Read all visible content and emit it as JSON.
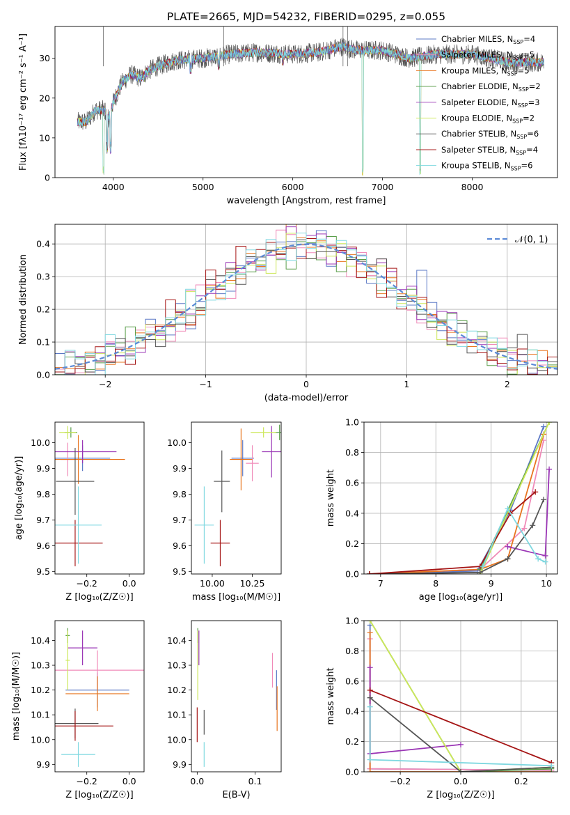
{
  "figure": {
    "title": "PLATE=2665, MJD=54232, FIBERID=0295, z=0.055"
  },
  "models": [
    {
      "name": "Chabrier MILES",
      "nssp": "4",
      "color": "#5b78c5"
    },
    {
      "name": "Salpeter MILES",
      "nssp": "5",
      "color": "#f08ab8"
    },
    {
      "name": "Kroupa MILES",
      "nssp": "5",
      "color": "#e8751f"
    },
    {
      "name": "Chabrier ELODIE",
      "nssp": "2",
      "color": "#5a9e4a"
    },
    {
      "name": "Salpeter ELODIE",
      "nssp": "3",
      "color": "#9a35b5"
    },
    {
      "name": "Kroupa ELODIE",
      "nssp": "2",
      "color": "#cde85a"
    },
    {
      "name": "Chabrier STELIB",
      "nssp": "6",
      "color": "#555555"
    },
    {
      "name": "Salpeter STELIB",
      "nssp": "4",
      "color": "#a51515"
    },
    {
      "name": "Kroupa STELIB",
      "nssp": "6",
      "color": "#7fd8e0"
    }
  ],
  "chart_data": [
    {
      "id": "spectrum",
      "type": "line",
      "xlabel": "wavelength [Angstrom, rest frame]",
      "ylabel": "Flux [fλ10⁻¹⁷ erg cm⁻² s⁻¹ A⁻¹]",
      "xlim": [
        3350,
        8950
      ],
      "ylim": [
        0,
        38
      ],
      "xticks": [
        "4000",
        "5000",
        "6000",
        "7000",
        "8000"
      ],
      "yticks": [
        "0",
        "10",
        "20",
        "30"
      ],
      "grid": false,
      "legend": "top-right",
      "continuum": [
        [
          3600,
          14
        ],
        [
          3700,
          14
        ],
        [
          3800,
          17
        ],
        [
          3900,
          17
        ],
        [
          3950,
          15
        ],
        [
          4000,
          19
        ],
        [
          4100,
          24
        ],
        [
          4200,
          26
        ],
        [
          4300,
          25
        ],
        [
          4400,
          27
        ],
        [
          4500,
          28
        ],
        [
          4700,
          29.5
        ],
        [
          5000,
          30
        ],
        [
          5300,
          31
        ],
        [
          5600,
          31.5
        ],
        [
          6000,
          31
        ],
        [
          6300,
          31.5
        ],
        [
          6550,
          33
        ],
        [
          6700,
          32
        ],
        [
          7000,
          32
        ],
        [
          7300,
          30
        ],
        [
          7600,
          31
        ],
        [
          8000,
          31
        ],
        [
          8400,
          29
        ],
        [
          8800,
          29
        ]
      ],
      "dips": [
        [
          3930,
          6
        ],
        [
          3970,
          6
        ],
        [
          4340,
          24
        ],
        [
          4861,
          26
        ],
        [
          5175,
          27
        ],
        [
          5890,
          28
        ],
        [
          6780,
          0
        ],
        [
          7420,
          0
        ],
        [
          3890,
          0
        ]
      ]
    },
    {
      "id": "residuals",
      "type": "step-histogram",
      "xlabel": "(data-model)/error",
      "ylabel": "Normed distribution",
      "xlim": [
        -2.5,
        2.5
      ],
      "ylim": [
        0,
        0.46
      ],
      "xticks": [
        "−2",
        "−1",
        "0",
        "1",
        "2"
      ],
      "yticks": [
        "0.0",
        "0.1",
        "0.2",
        "0.3",
        "0.4"
      ],
      "grid": true,
      "legend": "top-right",
      "gauss_label": "𝒩(0, 1)",
      "bin_width": 0.1
    },
    {
      "id": "age_vs_Z",
      "type": "errorbar",
      "xlabel": "Z [log₁₀(Z/Z☉)]",
      "ylabel": "age  [log₁₀(age/yr)]",
      "xlim": [
        -0.35,
        0.07
      ],
      "ylim": [
        9.49,
        10.08
      ],
      "xticks": [
        "−0.2",
        "0.0"
      ],
      "yticks": [
        "9.5",
        "9.6",
        "9.7",
        "9.8",
        "9.9",
        "10.0"
      ],
      "points": [
        {
          "x": -0.22,
          "xerr": 0.13,
          "y": 9.94,
          "yerr": 0.05
        },
        {
          "x": -0.29,
          "xerr": 0.03,
          "y": 9.935,
          "yerr": 0.065
        },
        {
          "x": -0.24,
          "xerr": 0.22,
          "y": 9.935,
          "yerr": 0.095
        },
        {
          "x": -0.275,
          "xerr": 0.03,
          "y": 10.04,
          "yerr": 0.02
        },
        {
          "x": -0.22,
          "xerr": 0.16,
          "y": 9.965,
          "yerr": 0.045
        },
        {
          "x": -0.29,
          "xerr": 0.04,
          "y": 10.04,
          "yerr": 0.025
        },
        {
          "x": -0.255,
          "xerr": 0.09,
          "y": 9.85,
          "yerr": 0.13
        },
        {
          "x": -0.255,
          "xerr": 0.13,
          "y": 9.61,
          "yerr": 0.09
        },
        {
          "x": -0.24,
          "xerr": 0.11,
          "y": 9.68,
          "yerr": 0.15
        }
      ]
    },
    {
      "id": "age_vs_mass",
      "type": "errorbar",
      "xlabel": "mass [log₁₀(M/M☉)]",
      "ylabel": "",
      "xlim": [
        9.87,
        10.43
      ],
      "ylim": [
        9.49,
        10.08
      ],
      "xticks": [
        "10.00",
        "10.25"
      ],
      "yticks": [
        "9.5",
        "9.6",
        "9.7",
        "9.8",
        "9.9",
        "10.0"
      ],
      "points": [
        {
          "x": 10.19,
          "xerr": 0.07,
          "y": 9.94,
          "yerr": 0.07
        },
        {
          "x": 10.25,
          "xerr": 0.04,
          "y": 9.92,
          "yerr": 0.07
        },
        {
          "x": 10.18,
          "xerr": 0.07,
          "y": 9.935,
          "yerr": 0.12
        },
        {
          "x": 10.42,
          "xerr": 0.03,
          "y": 10.04,
          "yerr": 0.03
        },
        {
          "x": 10.37,
          "xerr": 0.06,
          "y": 9.965,
          "yerr": 0.1
        },
        {
          "x": 10.32,
          "xerr": 0.08,
          "y": 10.04,
          "yerr": 0.02
        },
        {
          "x": 10.06,
          "xerr": 0.05,
          "y": 9.85,
          "yerr": 0.12
        },
        {
          "x": 10.05,
          "xerr": 0.06,
          "y": 9.61,
          "yerr": 0.09
        },
        {
          "x": 9.95,
          "xerr": 0.06,
          "y": 9.68,
          "yerr": 0.15
        }
      ]
    },
    {
      "id": "weight_vs_age",
      "type": "line",
      "xlabel": "age  [log₁₀(age/yr)]",
      "ylabel": "mass weight",
      "xlim": [
        6.7,
        10.2
      ],
      "ylim": [
        0,
        1
      ],
      "xticks": [
        "7",
        "8",
        "9",
        "10"
      ],
      "yticks": [
        "0.0",
        "0.2",
        "0.4",
        "0.6",
        "0.8",
        "1.0"
      ],
      "grid": true,
      "series": [
        [
          [
            6.8,
            0
          ],
          [
            8.75,
            0.02
          ],
          [
            9.35,
            0.42
          ],
          [
            9.95,
            0.97
          ]
        ],
        [
          [
            6.8,
            0
          ],
          [
            8.8,
            0.03
          ],
          [
            9.6,
            0.3
          ],
          [
            9.95,
            0.88
          ]
        ],
        [
          [
            6.8,
            0
          ],
          [
            8.8,
            0.03
          ],
          [
            9.3,
            0.1
          ],
          [
            9.95,
            0.92
          ]
        ],
        [
          [
            8.8,
            0.03
          ],
          [
            10.05,
            1.0
          ]
        ],
        [
          [
            9.3,
            0.18
          ],
          [
            9.98,
            0.12
          ],
          [
            10.05,
            0.69
          ]
        ],
        [
          [
            8.8,
            0.0
          ],
          [
            10.05,
            1.0
          ]
        ],
        [
          [
            6.8,
            0
          ],
          [
            8.8,
            0.01
          ],
          [
            9.3,
            0.1
          ],
          [
            9.75,
            0.32
          ],
          [
            9.95,
            0.49
          ]
        ],
        [
          [
            6.8,
            0
          ],
          [
            8.8,
            0.05
          ],
          [
            9.35,
            0.4
          ],
          [
            9.8,
            0.54
          ]
        ],
        [
          [
            8.85,
            0.05
          ],
          [
            9.3,
            0.43
          ],
          [
            9.85,
            0.1
          ],
          [
            9.98,
            0.08
          ]
        ]
      ]
    },
    {
      "id": "mass_vs_Z",
      "type": "errorbar",
      "xlabel": "Z [log₁₀(Z/Z☉)]",
      "ylabel": "mass [log₁₀(M/M☉)]",
      "xlim": [
        -0.35,
        0.07
      ],
      "ylim": [
        9.87,
        10.48
      ],
      "xticks": [
        "−0.2",
        "0.0"
      ],
      "yticks": [
        "9.9",
        "10.0",
        "10.1",
        "10.2",
        "10.3",
        "10.4"
      ],
      "points": [
        {
          "x": -0.15,
          "xerr": 0.15,
          "y": 10.2,
          "yerr": 0.07
        },
        {
          "x": -0.15,
          "xerr": 0.22,
          "y": 10.28,
          "yerr": 0.08
        },
        {
          "x": -0.15,
          "xerr": 0.15,
          "y": 10.185,
          "yerr": 0.07
        },
        {
          "x": -0.29,
          "xerr": 0.01,
          "y": 10.42,
          "yerr": 0.03
        },
        {
          "x": -0.22,
          "xerr": 0.07,
          "y": 10.37,
          "yerr": 0.07
        },
        {
          "x": -0.29,
          "xerr": 0.01,
          "y": 10.32,
          "yerr": 0.12
        },
        {
          "x": -0.255,
          "xerr": 0.11,
          "y": 10.065,
          "yerr": 0.06
        },
        {
          "x": -0.255,
          "xerr": 0.18,
          "y": 10.055,
          "yerr": 0.06
        },
        {
          "x": -0.24,
          "xerr": 0.08,
          "y": 9.94,
          "yerr": 0.05
        }
      ]
    },
    {
      "id": "mass_vs_ebv",
      "type": "errorbar",
      "xlabel": "E(B-V)",
      "ylabel": "",
      "xlim": [
        -0.01,
        0.145
      ],
      "ylim": [
        9.87,
        10.48
      ],
      "xticks": [
        "0.0",
        "0.1"
      ],
      "yticks": [
        "9.9",
        "10.0",
        "10.1",
        "10.2",
        "10.3",
        "10.4"
      ],
      "points": [
        {
          "x": 0.137,
          "y": 10.2,
          "yerr": 0.08
        },
        {
          "x": 0.13,
          "y": 10.28,
          "yerr": 0.07
        },
        {
          "x": 0.138,
          "y": 10.125,
          "yerr": 0.09
        },
        {
          "x": 0.001,
          "y": 10.42,
          "yerr": 0.03
        },
        {
          "x": 0.003,
          "y": 10.37,
          "yerr": 0.07
        },
        {
          "x": 0.001,
          "y": 10.3,
          "yerr": 0.14
        },
        {
          "x": 0.012,
          "y": 10.07,
          "yerr": 0.05
        },
        {
          "x": 0.0,
          "y": 10.06,
          "yerr": 0.07
        },
        {
          "x": 0.012,
          "y": 9.94,
          "yerr": 0.05
        }
      ]
    },
    {
      "id": "weight_vs_Z",
      "type": "line",
      "xlabel": "Z [log₁₀(Z/Z☉)]",
      "ylabel": "mass weight",
      "xlim": [
        -0.32,
        0.32
      ],
      "ylim": [
        0,
        1
      ],
      "xticks": [
        "−0.2",
        "0.0",
        "0.2"
      ],
      "yticks": [
        "0.0",
        "0.2",
        "0.4",
        "0.6",
        "0.8",
        "1.0"
      ],
      "grid": true,
      "series": [
        [
          [
            -0.3,
            0.97
          ],
          [
            -0.3,
            0.02
          ],
          [
            0.3,
            0.01
          ]
        ],
        [
          [
            -0.3,
            0.88
          ],
          [
            -0.3,
            0.02
          ],
          [
            0.3,
            0.01
          ]
        ],
        [
          [
            -0.3,
            0.92
          ],
          [
            -0.3,
            0.0
          ],
          [
            0.3,
            0.0
          ]
        ],
        [
          [
            -0.3,
            1.0
          ],
          [
            0.0,
            0.0
          ],
          [
            0.3,
            0.02
          ]
        ],
        [
          [
            -0.3,
            0.69
          ],
          [
            -0.3,
            0.12
          ],
          [
            0.0,
            0.18
          ]
        ],
        [
          [
            -0.3,
            1.0
          ],
          [
            0.0,
            0.0
          ],
          [
            0.3,
            0.03
          ]
        ],
        [
          [
            -0.3,
            0.49
          ],
          [
            0.0,
            0.0
          ],
          [
            0.3,
            0.03
          ]
        ],
        [
          [
            -0.3,
            0.54
          ],
          [
            0.3,
            0.06
          ]
        ],
        [
          [
            -0.3,
            0.43
          ],
          [
            -0.3,
            0.08
          ],
          [
            0.3,
            0.04
          ]
        ]
      ]
    }
  ]
}
